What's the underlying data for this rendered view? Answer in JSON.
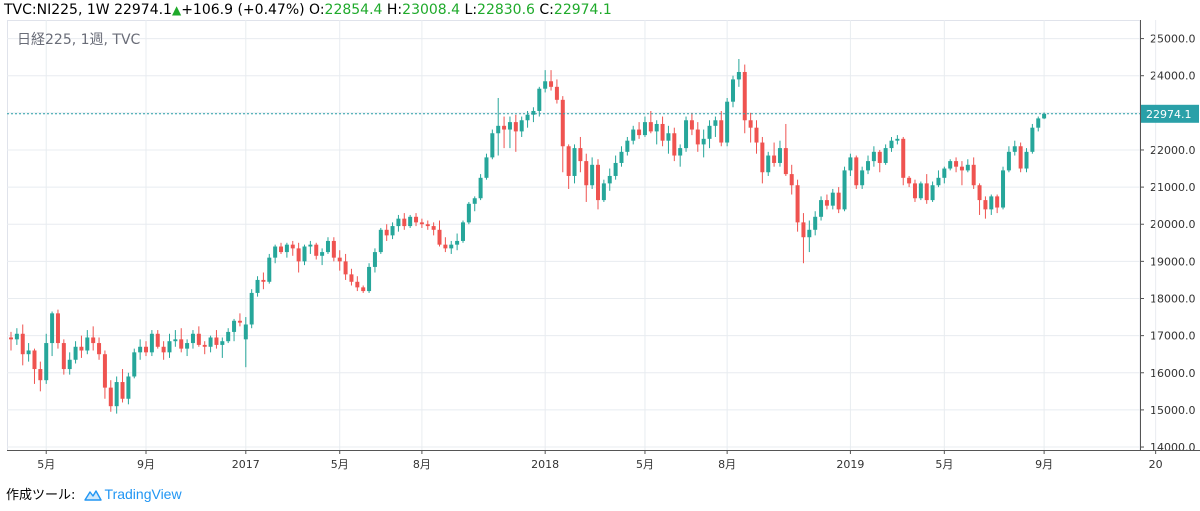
{
  "header": {
    "symbol": "TVC:NI225, 1W",
    "price": "22974.1",
    "change": "+106.9 (+0.47%)",
    "o_label": "O:",
    "o_value": "22854.4",
    "h_label": "H:",
    "h_value": "23008.4",
    "l_label": "L:",
    "l_value": "22830.6",
    "c_label": "C:",
    "c_value": "22974.1"
  },
  "legend_title": "日経225, 1週, TVC",
  "footer": {
    "prefix": "作成ツール:",
    "brand": "TradingView"
  },
  "colors": {
    "up": "#26a69a",
    "down": "#ef5350",
    "grid": "#e8ecf0",
    "price_line": "#2aa0a8",
    "header_up": "#1faa2b"
  },
  "chart_data": {
    "type": "candlestick",
    "y_ticks": [
      14000,
      15000,
      16000,
      17000,
      18000,
      19000,
      20000,
      21000,
      22000,
      23000,
      24000,
      25000
    ],
    "y_tick_labels": [
      "14000.0",
      "15000.0",
      "16000.0",
      "17000.0",
      "18000.0",
      "19000.0",
      "20000.0",
      "21000.0",
      "22000.0",
      "23000.0",
      "24000.0",
      "25000.0"
    ],
    "ylim": [
      13920,
      25500
    ],
    "x_labels": [
      {
        "label": "5月",
        "week": 6
      },
      {
        "label": "9月",
        "week": 23
      },
      {
        "label": "2017",
        "week": 40
      },
      {
        "label": "5月",
        "week": 56
      },
      {
        "label": "8月",
        "week": 70
      },
      {
        "label": "2018",
        "week": 91
      },
      {
        "label": "5月",
        "week": 108
      },
      {
        "label": "8月",
        "week": 122
      },
      {
        "label": "2019",
        "week": 143
      },
      {
        "label": "5月",
        "week": 159
      },
      {
        "label": "9月",
        "week": 176
      },
      {
        "label": "20",
        "week": 195
      }
    ],
    "last_price": 22974.1,
    "last_price_label": "22974.1",
    "candles": [
      [
        16950,
        17100,
        16600,
        16900
      ],
      [
        16900,
        17200,
        16750,
        17050
      ],
      [
        17050,
        17300,
        16200,
        16500
      ],
      [
        16500,
        16800,
        16300,
        16600
      ],
      [
        16600,
        16650,
        15700,
        16100
      ],
      [
        16100,
        16300,
        15500,
        15800
      ],
      [
        15800,
        17050,
        15700,
        16800
      ],
      [
        16800,
        17650,
        16450,
        17600
      ],
      [
        17600,
        17700,
        16650,
        16800
      ],
      [
        16800,
        16900,
        15950,
        16100
      ],
      [
        16100,
        16550,
        15950,
        16350
      ],
      [
        16350,
        16850,
        16250,
        16700
      ],
      [
        16700,
        17000,
        16400,
        16600
      ],
      [
        16600,
        17150,
        16500,
        16950
      ],
      [
        16950,
        17250,
        16600,
        16800
      ],
      [
        16800,
        16950,
        16350,
        16500
      ],
      [
        16500,
        16600,
        15300,
        15600
      ],
      [
        15600,
        15800,
        14950,
        15100
      ],
      [
        15100,
        15900,
        14900,
        15750
      ],
      [
        15750,
        16100,
        15200,
        15300
      ],
      [
        15300,
        16000,
        15150,
        15900
      ],
      [
        15900,
        16650,
        15850,
        16550
      ],
      [
        16550,
        16900,
        16350,
        16700
      ],
      [
        16700,
        16850,
        16450,
        16550
      ],
      [
        16550,
        17150,
        16450,
        17050
      ],
      [
        17050,
        17150,
        16650,
        16700
      ],
      [
        16700,
        16850,
        16350,
        16550
      ],
      [
        16550,
        17050,
        16400,
        16850
      ],
      [
        16850,
        17150,
        16700,
        16900
      ],
      [
        16900,
        17200,
        16550,
        16650
      ],
      [
        16650,
        16900,
        16450,
        16800
      ],
      [
        16800,
        17150,
        16650,
        17050
      ],
      [
        17050,
        17250,
        16700,
        16750
      ],
      [
        16750,
        16850,
        16500,
        16700
      ],
      [
        16700,
        17000,
        16550,
        16950
      ],
      [
        16950,
        17150,
        16650,
        16750
      ],
      [
        16750,
        16950,
        16400,
        16850
      ],
      [
        16850,
        17200,
        16800,
        17100
      ],
      [
        17100,
        17450,
        16850,
        17400
      ],
      [
        17400,
        17600,
        17250,
        17350
      ],
      [
        16900,
        17500,
        16150,
        17300
      ],
      [
        17300,
        18250,
        17200,
        18150
      ],
      [
        18150,
        18600,
        18050,
        18500
      ],
      [
        18500,
        18700,
        18250,
        18450
      ],
      [
        18450,
        19200,
        18400,
        19100
      ],
      [
        19100,
        19450,
        18950,
        19400
      ],
      [
        19400,
        19500,
        19200,
        19250
      ],
      [
        19250,
        19500,
        19100,
        19450
      ],
      [
        19450,
        19550,
        19150,
        19350
      ],
      [
        19350,
        19500,
        18700,
        19000
      ],
      [
        19000,
        19450,
        18900,
        19400
      ],
      [
        19400,
        19550,
        19200,
        19450
      ],
      [
        19450,
        19500,
        19050,
        19150
      ],
      [
        19150,
        19350,
        18900,
        19250
      ],
      [
        19250,
        19650,
        19200,
        19550
      ],
      [
        19550,
        19650,
        19000,
        19100
      ],
      [
        19100,
        19300,
        18750,
        19000
      ],
      [
        19000,
        19200,
        18500,
        18650
      ],
      [
        18650,
        18800,
        18350,
        18450
      ],
      [
        18450,
        18600,
        18200,
        18300
      ],
      [
        18300,
        18350,
        18150,
        18200
      ],
      [
        18200,
        18950,
        18150,
        18850
      ],
      [
        18850,
        19350,
        18700,
        19250
      ],
      [
        19250,
        19900,
        19200,
        19850
      ],
      [
        19850,
        20000,
        19550,
        19700
      ],
      [
        19700,
        20050,
        19600,
        19950
      ],
      [
        19950,
        20250,
        19800,
        20150
      ],
      [
        20150,
        20300,
        19850,
        19950
      ],
      [
        19950,
        20250,
        19900,
        20200
      ],
      [
        20200,
        20300,
        19950,
        20050
      ],
      [
        20050,
        20150,
        19900,
        20000
      ],
      [
        20000,
        20100,
        19850,
        19950
      ],
      [
        19950,
        20050,
        19700,
        19850
      ],
      [
        19850,
        20100,
        19400,
        19450
      ],
      [
        19450,
        19650,
        19250,
        19350
      ],
      [
        19350,
        19550,
        19200,
        19450
      ],
      [
        19450,
        19750,
        19300,
        19550
      ],
      [
        19550,
        20100,
        19500,
        20050
      ],
      [
        20050,
        20600,
        20000,
        20550
      ],
      [
        20550,
        20750,
        20350,
        20700
      ],
      [
        20700,
        21350,
        20650,
        21250
      ],
      [
        21250,
        21900,
        21200,
        21800
      ],
      [
        21800,
        22550,
        21750,
        22450
      ],
      [
        22450,
        23400,
        21850,
        22650
      ],
      [
        22650,
        22900,
        22050,
        22550
      ],
      [
        22550,
        22900,
        22050,
        22750
      ],
      [
        22750,
        22950,
        21950,
        22500
      ],
      [
        22500,
        22900,
        22350,
        22800
      ],
      [
        22800,
        23050,
        22600,
        22950
      ],
      [
        22950,
        23150,
        22750,
        23050
      ],
      [
        23050,
        23700,
        22900,
        23650
      ],
      [
        23650,
        24150,
        23550,
        23850
      ],
      [
        23850,
        24150,
        23600,
        23700
      ],
      [
        23700,
        23900,
        23250,
        23350
      ],
      [
        23350,
        23450,
        21400,
        22100
      ],
      [
        22100,
        22150,
        20950,
        21300
      ],
      [
        21300,
        22150,
        21100,
        22050
      ],
      [
        22050,
        22350,
        21400,
        21700
      ],
      [
        21700,
        21900,
        20600,
        21050
      ],
      [
        21050,
        21800,
        20950,
        21600
      ],
      [
        21600,
        21750,
        20400,
        20650
      ],
      [
        20650,
        21200,
        20600,
        21100
      ],
      [
        21100,
        21500,
        20900,
        21300
      ],
      [
        21300,
        21850,
        21200,
        21650
      ],
      [
        21650,
        22100,
        21550,
        21950
      ],
      [
        21950,
        22350,
        21850,
        22250
      ],
      [
        22250,
        22650,
        22150,
        22550
      ],
      [
        22550,
        22750,
        22300,
        22400
      ],
      [
        22400,
        22900,
        22350,
        22750
      ],
      [
        22750,
        23050,
        22450,
        22500
      ],
      [
        22500,
        22800,
        22150,
        22700
      ],
      [
        22700,
        22900,
        22100,
        22250
      ],
      [
        22250,
        22650,
        21900,
        22450
      ],
      [
        22450,
        22600,
        21700,
        21850
      ],
      [
        21850,
        22150,
        21550,
        22050
      ],
      [
        22050,
        22900,
        21950,
        22800
      ],
      [
        22800,
        23000,
        22400,
        22550
      ],
      [
        22550,
        22750,
        21950,
        22150
      ],
      [
        22150,
        22550,
        21800,
        22300
      ],
      [
        22300,
        22800,
        22050,
        22650
      ],
      [
        22650,
        22900,
        22350,
        22800
      ],
      [
        22800,
        23050,
        22100,
        22200
      ],
      [
        22200,
        23400,
        22100,
        23300
      ],
      [
        23300,
        24000,
        23150,
        23900
      ],
      [
        23900,
        24450,
        23700,
        24100
      ],
      [
        24100,
        24300,
        22450,
        22800
      ],
      [
        22800,
        23000,
        22200,
        22600
      ],
      [
        22600,
        22800,
        21900,
        22200
      ],
      [
        22200,
        22350,
        21100,
        21400
      ],
      [
        21400,
        21950,
        21300,
        21850
      ],
      [
        21850,
        22200,
        21550,
        21650
      ],
      [
        21650,
        22250,
        21550,
        22050
      ],
      [
        22050,
        22700,
        21300,
        21350
      ],
      [
        21350,
        21600,
        20800,
        21050
      ],
      [
        21050,
        21200,
        19800,
        20050
      ],
      [
        20050,
        20300,
        18950,
        19650
      ],
      [
        19650,
        20100,
        19250,
        19850
      ],
      [
        19850,
        20350,
        19700,
        20200
      ],
      [
        20200,
        20750,
        20100,
        20650
      ],
      [
        20650,
        20800,
        20400,
        20500
      ],
      [
        20500,
        20950,
        20400,
        20850
      ],
      [
        20850,
        21000,
        20300,
        20400
      ],
      [
        20400,
        21550,
        20350,
        21450
      ],
      [
        21450,
        21900,
        21300,
        21800
      ],
      [
        21800,
        21850,
        20950,
        21050
      ],
      [
        21050,
        21550,
        20950,
        21450
      ],
      [
        21450,
        21850,
        21350,
        21700
      ],
      [
        21700,
        22100,
        21550,
        21950
      ],
      [
        21950,
        22000,
        21400,
        21650
      ],
      [
        21650,
        22150,
        21600,
        22050
      ],
      [
        22050,
        22350,
        21950,
        22250
      ],
      [
        22250,
        22400,
        22150,
        22300
      ],
      [
        22300,
        22350,
        21050,
        21250
      ],
      [
        21250,
        21300,
        21000,
        21100
      ],
      [
        21100,
        21200,
        20600,
        20700
      ],
      [
        20700,
        21150,
        20650,
        21100
      ],
      [
        21100,
        21350,
        20550,
        20650
      ],
      [
        20650,
        21150,
        20600,
        21050
      ],
      [
        21050,
        21450,
        21000,
        21250
      ],
      [
        21250,
        21550,
        21100,
        21500
      ],
      [
        21500,
        21750,
        21450,
        21700
      ],
      [
        21700,
        21800,
        21400,
        21550
      ],
      [
        21550,
        21700,
        21050,
        21450
      ],
      [
        21450,
        21750,
        21400,
        21600
      ],
      [
        21600,
        21800,
        20950,
        21050
      ],
      [
        21050,
        21100,
        20250,
        20650
      ],
      [
        20650,
        20750,
        20150,
        20400
      ],
      [
        20400,
        20800,
        20250,
        20750
      ],
      [
        20750,
        20800,
        20300,
        20450
      ],
      [
        20450,
        21550,
        20400,
        21450
      ],
      [
        21450,
        22100,
        21400,
        21950
      ],
      [
        21950,
        22250,
        21850,
        22100
      ],
      [
        22100,
        22200,
        21400,
        21500
      ],
      [
        21500,
        22050,
        21400,
        21950
      ],
      [
        21950,
        22700,
        21900,
        22600
      ],
      [
        22600,
        22900,
        22500,
        22850
      ],
      [
        22850,
        23010,
        22830,
        22974.1
      ]
    ]
  }
}
